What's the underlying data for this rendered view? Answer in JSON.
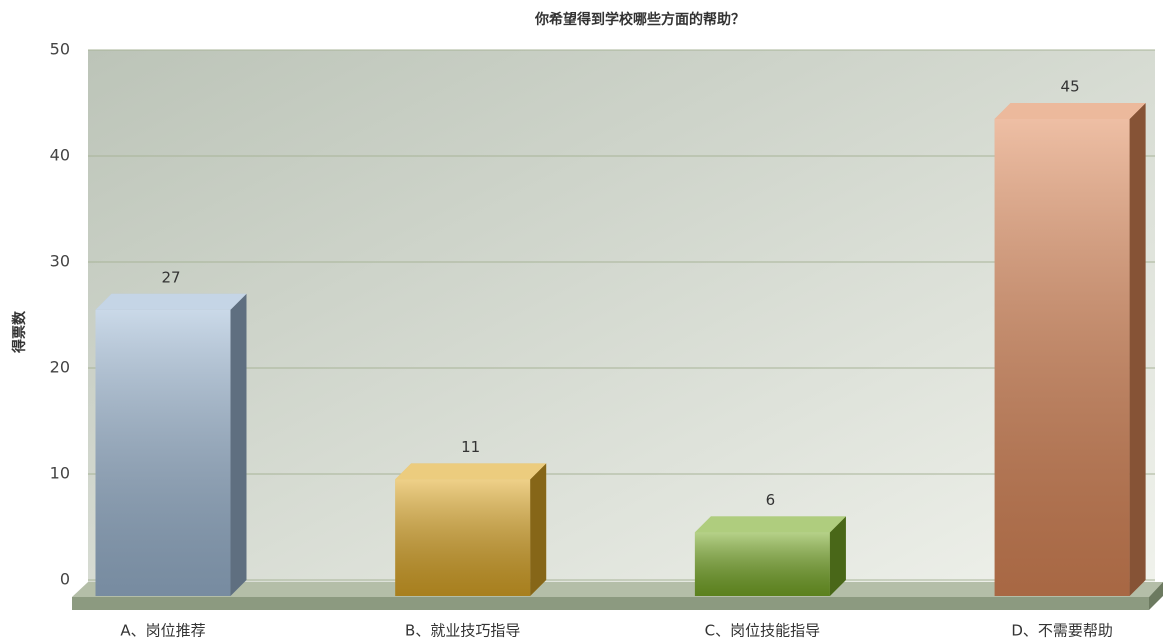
{
  "chart_data": {
    "type": "bar",
    "title": "你希望得到学校哪些方面的帮助？",
    "y_label": "得票数",
    "categories": [
      "A、岗位推荐",
      "B、就业技巧指导",
      "C、岗位技能指导",
      "D、不需要帮助"
    ],
    "values": [
      27,
      11,
      6,
      45
    ],
    "colors": [
      "#9fbad6",
      "#e0aa28",
      "#7aac28",
      "#e08a5a"
    ],
    "ylim": [
      0,
      50
    ],
    "yticks": [
      0,
      10,
      20,
      30,
      40,
      50
    ],
    "grid": true
  }
}
